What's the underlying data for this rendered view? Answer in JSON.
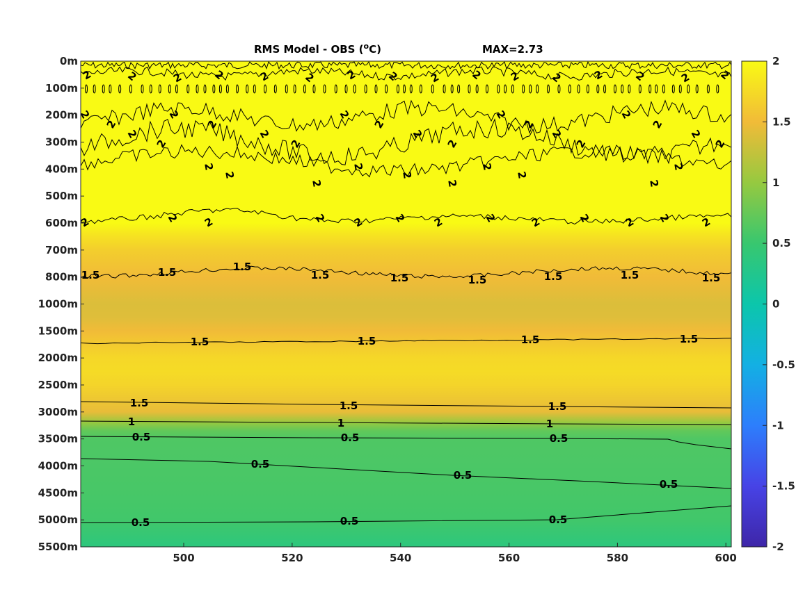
{
  "chart_data": {
    "type": "heatmap",
    "title": "RMS Model - OBS (",
    "title_unit_sup": "o",
    "title_unit_end": "C)",
    "annotation": "MAX=2.73",
    "x": {
      "ticks": [
        500,
        520,
        540,
        560,
        580,
        600
      ],
      "lim": [
        481,
        601
      ]
    },
    "y": {
      "labels": [
        "0m",
        "100m",
        "200m",
        "300m",
        "400m",
        "500m",
        "600m",
        "700m",
        "800m",
        "1000m",
        "1500m",
        "2000m",
        "2500m",
        "3000m",
        "3500m",
        "4000m",
        "4500m",
        "5000m",
        "5500m"
      ],
      "note": "irregular depth axis, equally spaced labels, depth increases downward"
    },
    "colorbar": {
      "lim": [
        -2,
        2
      ],
      "ticks": [
        "2",
        "1.5",
        "1",
        "0.5",
        "0",
        "-0.5",
        "-1",
        "-1.5",
        "-2"
      ],
      "colormap": [
        "#3e26a8",
        "#4743e6",
        "#2d7efc",
        "#13b0e3",
        "#0cc6ab",
        "#38c76f",
        "#96c940",
        "#f1bb38",
        "#f9fa14"
      ]
    },
    "field_profile": {
      "depth_index": [
        0,
        1,
        2,
        3,
        4,
        5,
        6,
        6.5,
        7,
        8,
        9,
        9.5,
        10,
        10.5,
        11,
        11.5,
        12,
        13,
        13.4,
        13.7,
        14,
        15,
        16,
        17,
        18
      ],
      "value": [
        2.6,
        2.4,
        2.3,
        2.2,
        2.2,
        2.15,
        2.0,
        1.8,
        1.65,
        1.5,
        1.38,
        1.4,
        1.5,
        1.62,
        1.72,
        1.75,
        1.7,
        1.45,
        1.0,
        0.72,
        0.62,
        0.6,
        0.58,
        0.55,
        0.38
      ]
    },
    "contour_labels": [
      {
        "value": "2",
        "count_approx": 60,
        "depths": [
          "0m-100m",
          "200m-450m",
          "600m"
        ]
      },
      {
        "value": "1.5",
        "depths": [
          "800m",
          "1500m-2000m",
          "3000m"
        ]
      },
      {
        "value": "1",
        "depths": [
          "3000m-3500m"
        ]
      },
      {
        "value": "0.5",
        "depths": [
          "3500m",
          "4000m",
          "5000m"
        ]
      }
    ],
    "label_texts": {
      "c2": "2",
      "c15": "1.5",
      "c1": "1",
      "c05": "0.5"
    }
  }
}
